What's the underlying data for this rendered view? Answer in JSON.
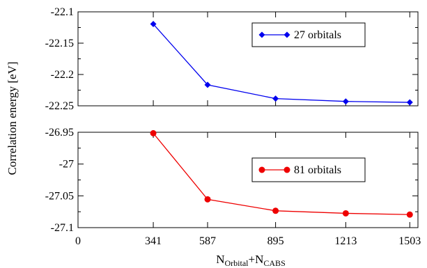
{
  "chart_data": {
    "type": "line",
    "ylabel": "Correlation energy [eV]",
    "xlabel": {
      "parts": [
        {
          "text": "N",
          "sub": false
        },
        {
          "text": "Orbital",
          "sub": true
        },
        {
          "text": "+N",
          "sub": false
        },
        {
          "text": "CABS",
          "sub": true
        }
      ]
    },
    "x_ticks": [
      0,
      341,
      587,
      895,
      1213,
      1503
    ],
    "x_tick_labels": [
      "0",
      "341",
      "587",
      "895",
      "1213",
      "1503"
    ],
    "panels": [
      {
        "id": "top",
        "ylim": [
          -22.25,
          -22.1
        ],
        "y_ticks": [
          -22.1,
          -22.15,
          -22.2,
          -22.25
        ],
        "y_tick_labels": [
          "-22.1",
          "-22.15",
          "-22.2",
          "-22.25"
        ],
        "legend_position": "upper-right",
        "series": [
          {
            "name": "27 orbitals",
            "color": "#0000ee",
            "marker": "diamond",
            "x": [
              341,
              587,
              895,
              1213,
              1503
            ],
            "y": [
              -22.1195,
              -22.2165,
              -22.2385,
              -22.243,
              -22.2445
            ]
          }
        ]
      },
      {
        "id": "bottom",
        "ylim": [
          -27.1,
          -26.95
        ],
        "y_ticks": [
          -26.95,
          -27.0,
          -27.05,
          -27.1
        ],
        "y_tick_labels": [
          "-26.95",
          "-27",
          "-27.05",
          "-27.1"
        ],
        "legend_position": "middle-right",
        "series": [
          {
            "name": "81 orbitals",
            "color": "#ee0000",
            "marker": "circle",
            "x": [
              341,
              587,
              895,
              1213,
              1503
            ],
            "y": [
              -26.9515,
              -27.0555,
              -27.0735,
              -27.0775,
              -27.0795
            ]
          }
        ]
      }
    ]
  }
}
